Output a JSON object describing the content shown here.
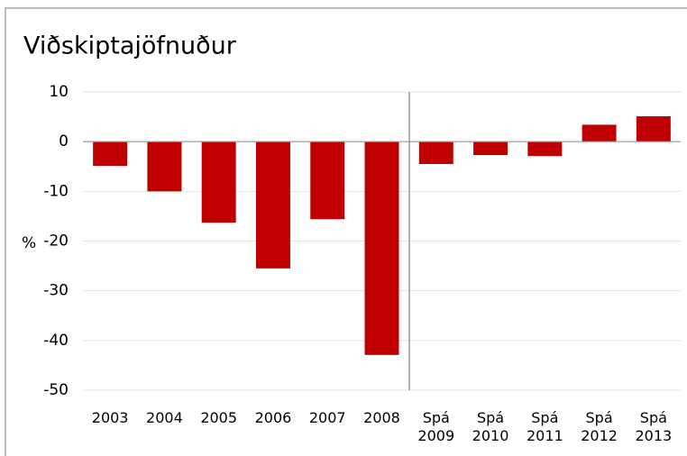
{
  "chart_data": {
    "type": "bar",
    "title": "Viðskiptajöfnuður",
    "y_label": "%",
    "categories": [
      "2003",
      "2004",
      "2005",
      "2006",
      "2007",
      "2008",
      "Spá 2009",
      "Spá 2010",
      "Spá 2011",
      "Spá 2012",
      "Spá 2013"
    ],
    "values": [
      -4.9,
      -10.0,
      -16.3,
      -25.5,
      -15.6,
      -42.9,
      -4.5,
      -2.7,
      -2.9,
      3.4,
      5.1
    ],
    "color": "#c00000",
    "ylim": [
      -50,
      10
    ],
    "yticks": [
      -50,
      -40,
      -30,
      -20,
      -10,
      0,
      10
    ],
    "grid": true
  }
}
